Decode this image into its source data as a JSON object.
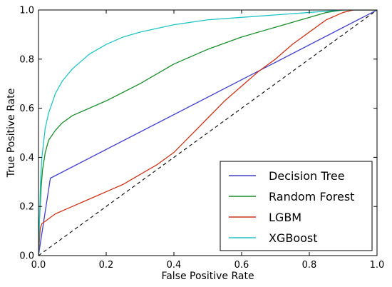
{
  "chart_data": {
    "type": "line",
    "title": "",
    "xlabel": "False Positive Rate",
    "ylabel": "True Positive Rate",
    "xlim": [
      0.0,
      1.0
    ],
    "ylim": [
      0.0,
      1.0
    ],
    "xticks": [
      "0.0",
      "0.2",
      "0.4",
      "0.6",
      "0.8",
      "1.0"
    ],
    "yticks": [
      "0.0",
      "0.2",
      "0.4",
      "0.6",
      "0.8",
      "1.0"
    ],
    "grid": false,
    "legend_position": "bottom-right",
    "diagonal_reference": true,
    "series": [
      {
        "name": "Decision Tree",
        "color": "#4040cc",
        "x": [
          0.0,
          0.035,
          1.0
        ],
        "y": [
          0.0,
          0.315,
          1.0
        ]
      },
      {
        "name": "Random Forest",
        "color": "#1a8c2a",
        "x": [
          0.0,
          0.003,
          0.008,
          0.012,
          0.02,
          0.03,
          0.05,
          0.07,
          0.1,
          0.15,
          0.2,
          0.3,
          0.4,
          0.5,
          0.6,
          0.7,
          0.8,
          0.85,
          0.9,
          0.95,
          1.0
        ],
        "y": [
          0.0,
          0.15,
          0.28,
          0.35,
          0.42,
          0.47,
          0.51,
          0.54,
          0.57,
          0.6,
          0.63,
          0.7,
          0.78,
          0.84,
          0.89,
          0.93,
          0.97,
          0.99,
          1.0,
          1.0,
          1.0
        ]
      },
      {
        "name": "LGBM",
        "color": "#cc3318",
        "x": [
          0.0,
          0.005,
          0.01,
          0.02,
          0.05,
          0.1,
          0.15,
          0.2,
          0.25,
          0.3,
          0.35,
          0.4,
          0.45,
          0.5,
          0.55,
          0.6,
          0.65,
          0.7,
          0.75,
          0.8,
          0.85,
          0.9,
          0.93,
          1.0
        ],
        "y": [
          0.0,
          0.11,
          0.13,
          0.14,
          0.17,
          0.2,
          0.23,
          0.26,
          0.29,
          0.33,
          0.37,
          0.42,
          0.49,
          0.56,
          0.63,
          0.69,
          0.75,
          0.8,
          0.86,
          0.91,
          0.96,
          0.99,
          1.0,
          1.0
        ]
      },
      {
        "name": "XGBoost",
        "color": "#22c4c4",
        "x": [
          0.0,
          0.003,
          0.006,
          0.01,
          0.015,
          0.02,
          0.03,
          0.04,
          0.05,
          0.07,
          0.1,
          0.15,
          0.2,
          0.25,
          0.3,
          0.4,
          0.5,
          0.6,
          0.7,
          0.8,
          0.9,
          1.0
        ],
        "y": [
          0.0,
          0.15,
          0.3,
          0.4,
          0.46,
          0.52,
          0.58,
          0.62,
          0.66,
          0.71,
          0.76,
          0.82,
          0.86,
          0.89,
          0.91,
          0.94,
          0.96,
          0.97,
          0.98,
          0.99,
          1.0,
          1.0
        ]
      }
    ]
  }
}
